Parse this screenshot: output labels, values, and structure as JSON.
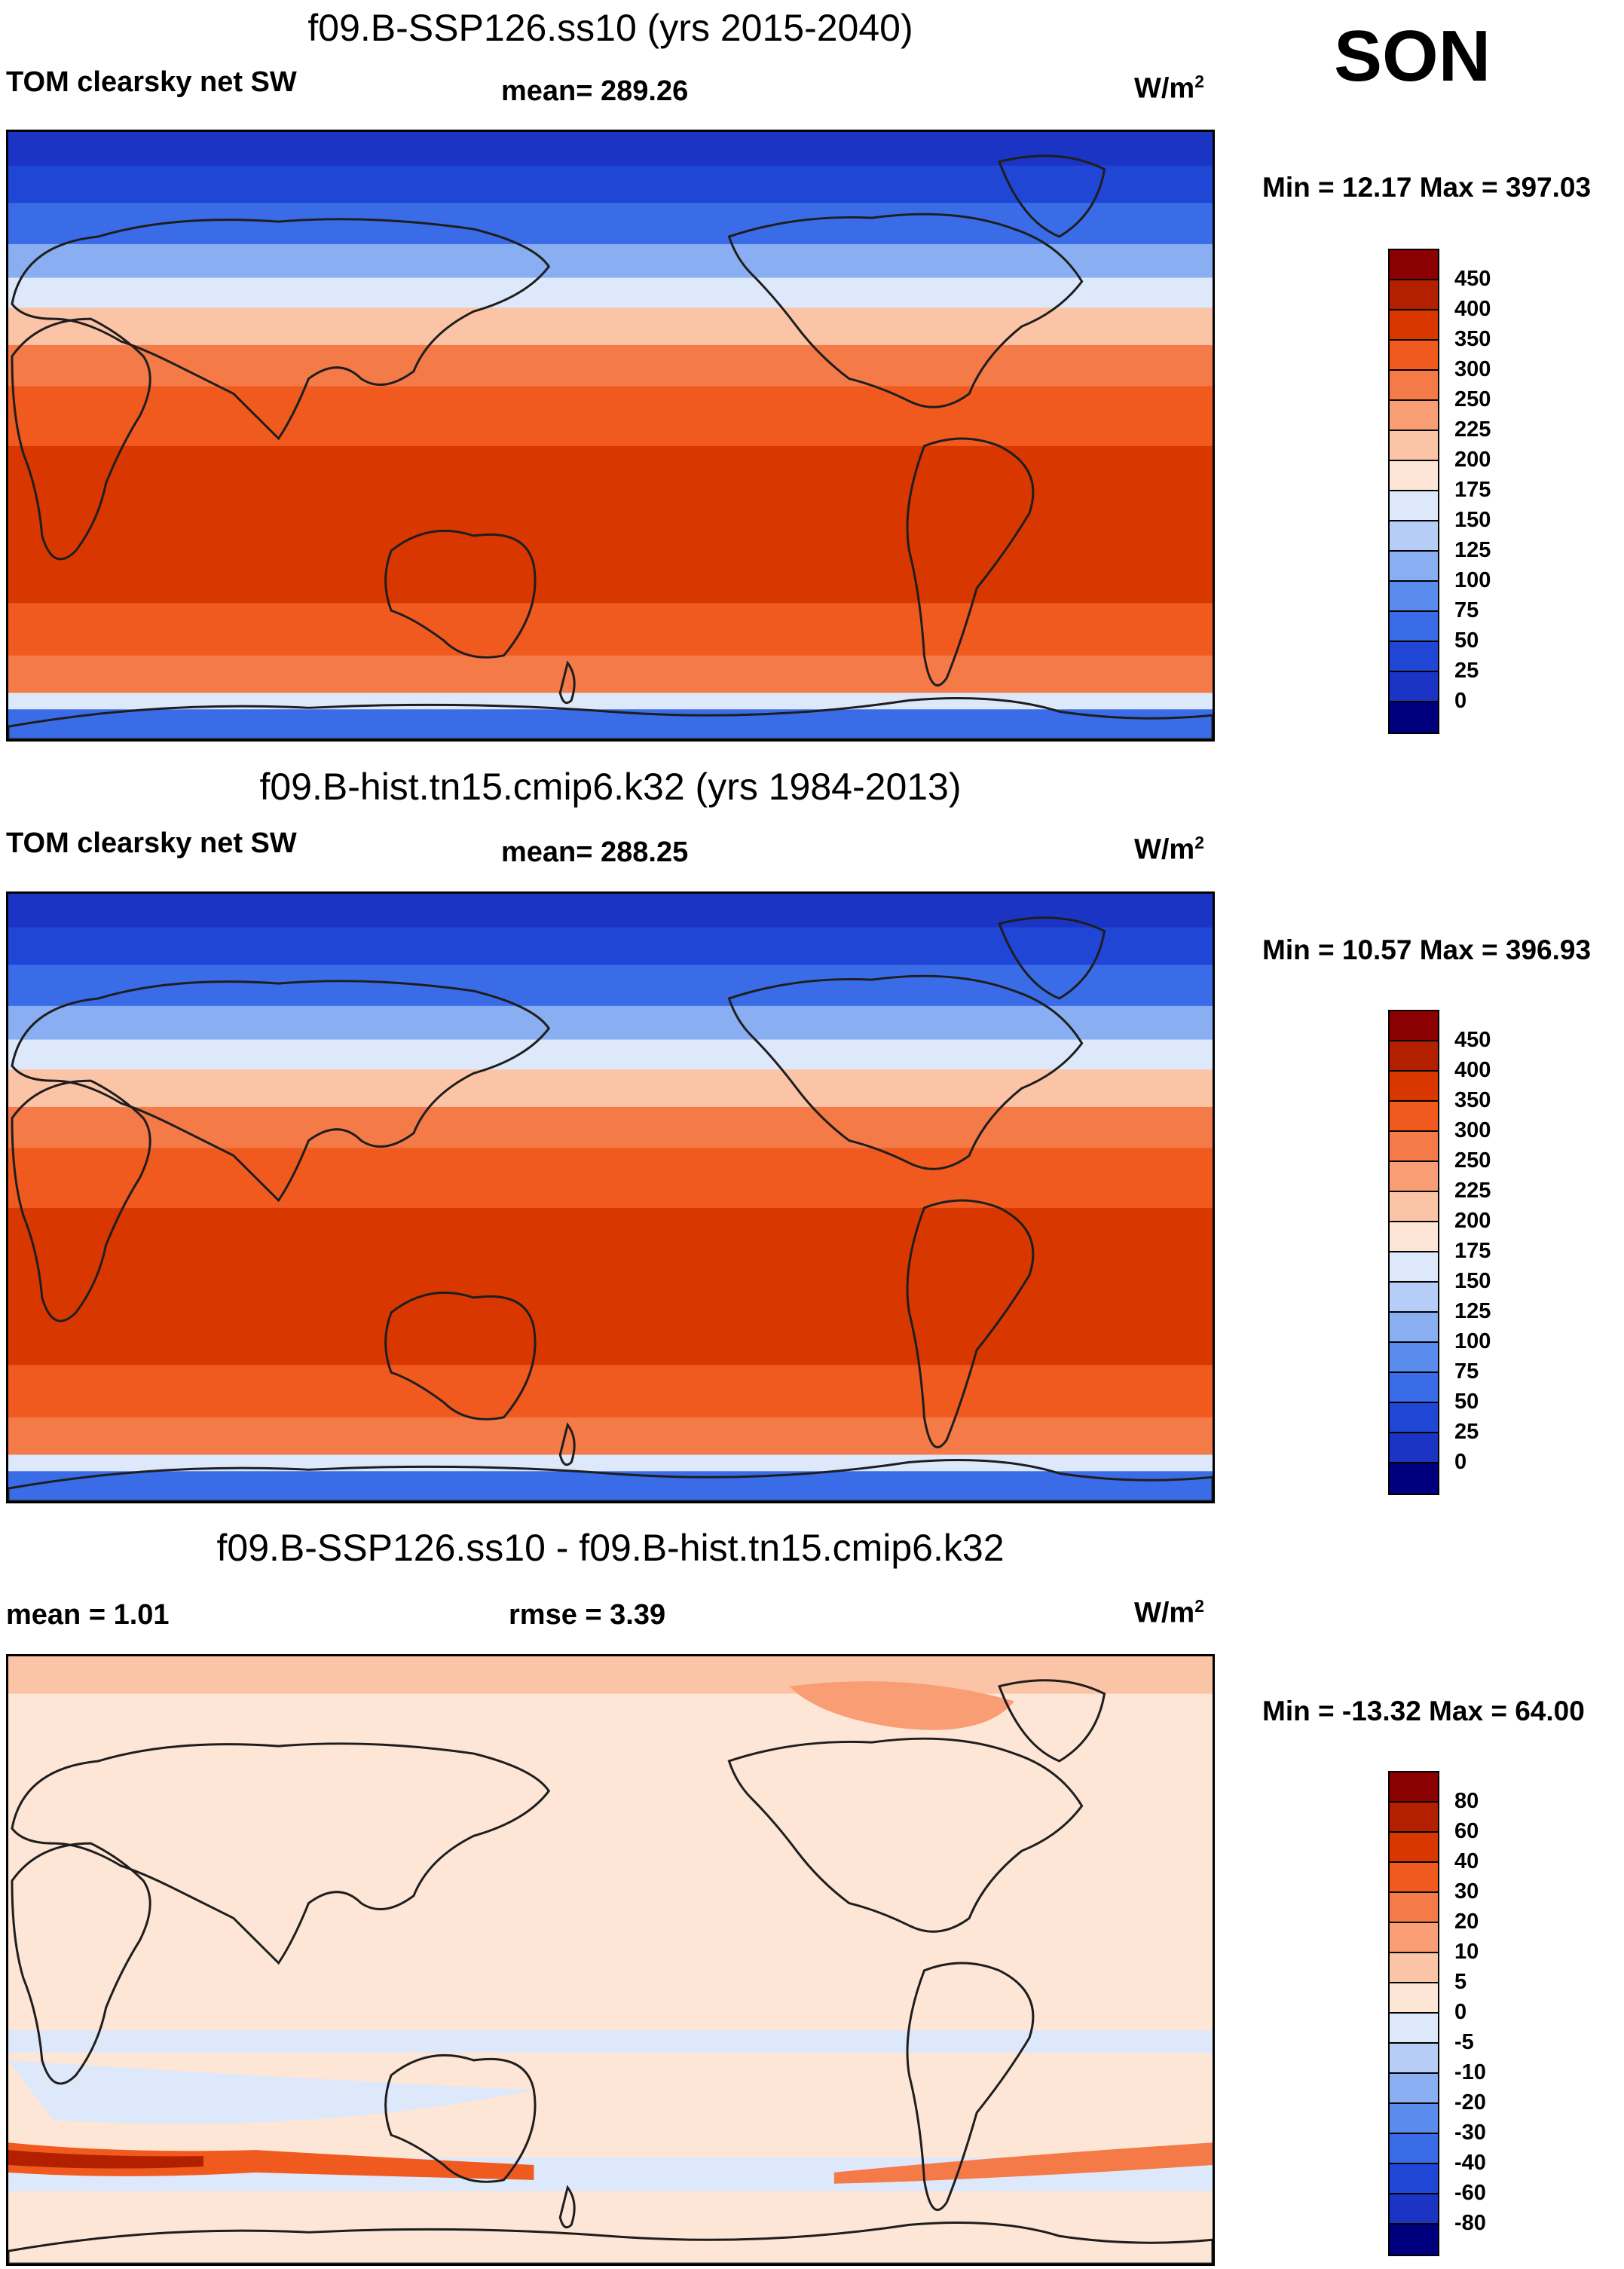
{
  "season": "SON",
  "units_base": "W/m",
  "units_exp": "2",
  "panels": [
    {
      "title": "f09.B-SSP126.ss10 (yrs 2015-2040)",
      "left_label": "TOM clearsky net SW",
      "mid_label": "mean= 289.26",
      "minmax": "Min =  12.17 Max = 397.03"
    },
    {
      "title": "f09.B-hist.tn15.cmip6.k32 (yrs 1984-2013)",
      "left_label": "TOM clearsky net SW",
      "mid_label": "mean= 288.25",
      "minmax": "Min =  10.57 Max = 396.93"
    },
    {
      "title": "f09.B-SSP126.ss10 - f09.B-hist.tn15.cmip6.k32",
      "left_label": "mean =   1.01",
      "mid_label": "rmse =   3.39",
      "minmax": "Min = -13.32 Max =  64.00"
    }
  ],
  "colorbars": {
    "absolute": {
      "labels": [
        "450",
        "400",
        "350",
        "300",
        "250",
        "225",
        "200",
        "175",
        "150",
        "125",
        "100",
        "75",
        "50",
        "25",
        "0"
      ],
      "colors": [
        "#8b0000",
        "#b22000",
        "#d83800",
        "#f05a1e",
        "#f47a48",
        "#f99d74",
        "#fcc4a6",
        "#fde6d6",
        "#dde8fa",
        "#b6cdf7",
        "#89aef2",
        "#5a8ced",
        "#3a6ce8",
        "#2046d6",
        "#1c34c4",
        "#00007f"
      ]
    },
    "difference": {
      "labels": [
        "80",
        "60",
        "40",
        "30",
        "20",
        "10",
        "5",
        "0",
        "-5",
        "-10",
        "-20",
        "-30",
        "-40",
        "-60",
        "-80"
      ],
      "colors": [
        "#8b0000",
        "#b22000",
        "#d83800",
        "#f05a1e",
        "#f47a48",
        "#f99d74",
        "#fcc4a6",
        "#fde6d6",
        "#dde8fa",
        "#b6cdf7",
        "#89aef2",
        "#5a8ced",
        "#3a6ce8",
        "#2046d6",
        "#1c34c4",
        "#00007f"
      ]
    }
  },
  "map_bands": {
    "absolute": [
      {
        "color": "#1c34c4"
      },
      {
        "color": "#2046d6"
      },
      {
        "color": "#3a6ce8"
      },
      {
        "color": "#89aef2"
      },
      {
        "color": "#dde8fa"
      },
      {
        "color": "#fcc4a6"
      },
      {
        "color": "#f47a48"
      },
      {
        "color": "#f05a1e"
      },
      {
        "color": "#d83800"
      },
      {
        "color": "#d83800"
      },
      {
        "color": "#f05a1e"
      },
      {
        "color": "#f47a48"
      },
      {
        "color": "#dde8fa"
      },
      {
        "color": "#3a6ce8"
      },
      {
        "color": "#2046d6"
      }
    ],
    "land": "#1e1e1e"
  }
}
